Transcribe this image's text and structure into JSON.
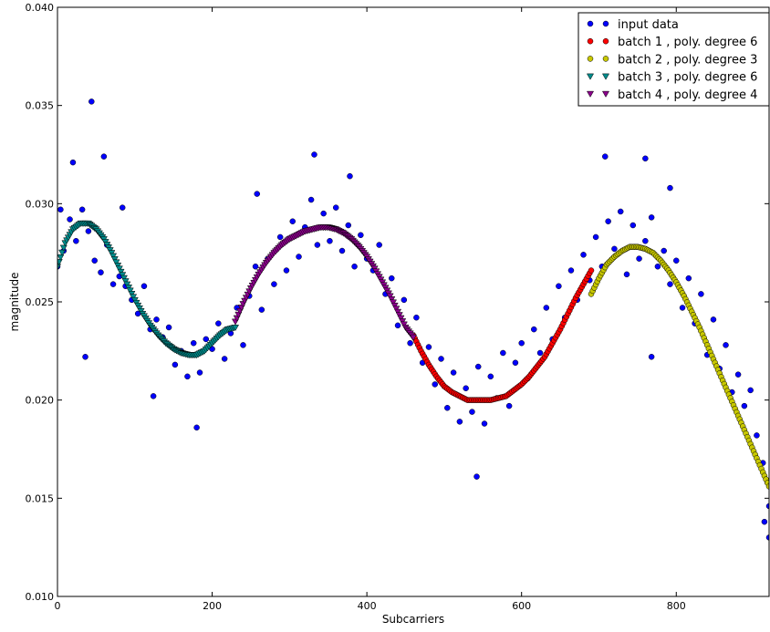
{
  "chart_data": {
    "type": "scatter",
    "xlabel": "Subcarriers",
    "ylabel": "magnitude",
    "xlim": [
      0,
      920
    ],
    "ylim": [
      0.01,
      0.04
    ],
    "x_ticks": [
      0,
      200,
      400,
      600,
      800
    ],
    "y_ticks": [
      0.01,
      0.015,
      0.02,
      0.025,
      0.03,
      0.035,
      0.04
    ],
    "x_tick_labels": [
      "0",
      "200",
      "400",
      "600",
      "800"
    ],
    "y_tick_labels": [
      "0.010",
      "0.015",
      "0.020",
      "0.025",
      "0.030",
      "0.035",
      "0.040"
    ],
    "grid": false,
    "legend_position": "top-right",
    "series": [
      {
        "name": "input data",
        "marker": "circle",
        "color": "#0000ff",
        "x": [
          0,
          8,
          16,
          24,
          32,
          40,
          48,
          56,
          64,
          72,
          80,
          88,
          96,
          104,
          112,
          120,
          128,
          136,
          144,
          152,
          160,
          168,
          176,
          184,
          192,
          200,
          208,
          216,
          224,
          232,
          240,
          248,
          256,
          264,
          272,
          280,
          288,
          296,
          304,
          312,
          320,
          328,
          336,
          344,
          352,
          360,
          368,
          376,
          384,
          392,
          400,
          408,
          416,
          424,
          432,
          440,
          448,
          456,
          464,
          472,
          480,
          488,
          496,
          504,
          512,
          520,
          528,
          536,
          544,
          552,
          560,
          568,
          576,
          584,
          592,
          600,
          608,
          616,
          624,
          632,
          640,
          648,
          656,
          664,
          672,
          680,
          688,
          696,
          704,
          712,
          720,
          728,
          736,
          744,
          752,
          760,
          768,
          776,
          784,
          792,
          800,
          808,
          816,
          824,
          832,
          840,
          848,
          856,
          864,
          872,
          880,
          888,
          896,
          904,
          912,
          920,
          4,
          20,
          36,
          44,
          60,
          84,
          124,
          180,
          258,
          332,
          378,
          542,
          708,
          760,
          768,
          792,
          914,
          918,
          920
        ],
        "y": [
          0.0268,
          0.0276,
          0.0292,
          0.0281,
          0.0297,
          0.0286,
          0.0271,
          0.0265,
          0.0279,
          0.0259,
          0.0263,
          0.0258,
          0.0251,
          0.0244,
          0.0258,
          0.0236,
          0.0241,
          0.0232,
          0.0237,
          0.0218,
          0.0225,
          0.0212,
          0.0229,
          0.0214,
          0.0231,
          0.0226,
          0.0239,
          0.0221,
          0.0234,
          0.0247,
          0.0228,
          0.0253,
          0.0268,
          0.0246,
          0.0272,
          0.0259,
          0.0283,
          0.0266,
          0.0291,
          0.0273,
          0.0288,
          0.0302,
          0.0279,
          0.0295,
          0.0281,
          0.0298,
          0.0276,
          0.0289,
          0.0268,
          0.0284,
          0.0272,
          0.0266,
          0.0279,
          0.0254,
          0.0262,
          0.0238,
          0.0251,
          0.0229,
          0.0242,
          0.0219,
          0.0227,
          0.0208,
          0.0221,
          0.0196,
          0.0214,
          0.0189,
          0.0206,
          0.0194,
          0.0217,
          0.0188,
          0.0212,
          0.0201,
          0.0224,
          0.0197,
          0.0219,
          0.0229,
          0.0211,
          0.0236,
          0.0224,
          0.0247,
          0.0231,
          0.0258,
          0.0242,
          0.0266,
          0.0251,
          0.0274,
          0.0261,
          0.0283,
          0.0268,
          0.0291,
          0.0277,
          0.0296,
          0.0264,
          0.0289,
          0.0272,
          0.0281,
          0.0293,
          0.0268,
          0.0276,
          0.0259,
          0.0271,
          0.0247,
          0.0262,
          0.0239,
          0.0254,
          0.0223,
          0.0241,
          0.0216,
          0.0228,
          0.0204,
          0.0213,
          0.0197,
          0.0205,
          0.0182,
          0.0168,
          0.0146,
          0.0297,
          0.0321,
          0.0222,
          0.0352,
          0.0324,
          0.0298,
          0.0202,
          0.0186,
          0.0305,
          0.0325,
          0.0314,
          0.0161,
          0.0324,
          0.0323,
          0.0222,
          0.0308,
          0.0138,
          0.0158,
          0.013
        ]
      },
      {
        "name": "batch 1 , poly. degree 6",
        "marker": "circle",
        "color": "#ff0000",
        "x_range": [
          460,
          690
        ],
        "x": [
          460,
          470,
          480,
          490,
          500,
          510,
          520,
          530,
          540,
          550,
          560,
          570,
          580,
          590,
          600,
          610,
          620,
          630,
          640,
          650,
          660,
          670,
          680,
          690
        ],
        "y": [
          0.0233,
          0.0225,
          0.0218,
          0.0212,
          0.0207,
          0.0204,
          0.0202,
          0.02,
          0.02,
          0.02,
          0.02,
          0.0201,
          0.0202,
          0.0205,
          0.0208,
          0.0212,
          0.0217,
          0.0222,
          0.0229,
          0.0236,
          0.0244,
          0.0252,
          0.0259,
          0.0266
        ]
      },
      {
        "name": "batch 2 , poly. degree 3",
        "marker": "circle",
        "color": "#c8c800",
        "x_range": [
          690,
          920
        ],
        "x": [
          690,
          700,
          710,
          720,
          730,
          740,
          750,
          760,
          770,
          780,
          790,
          800,
          810,
          820,
          830,
          840,
          850,
          860,
          870,
          880,
          890,
          900,
          910,
          920
        ],
        "y": [
          0.0254,
          0.0262,
          0.0269,
          0.0273,
          0.0276,
          0.0278,
          0.0278,
          0.0277,
          0.0275,
          0.0271,
          0.0266,
          0.026,
          0.0253,
          0.0245,
          0.0237,
          0.0228,
          0.0219,
          0.021,
          0.0201,
          0.0192,
          0.0183,
          0.0174,
          0.0165,
          0.0156
        ]
      },
      {
        "name": "batch 3 , poly. degree 6",
        "marker": "triangle-down",
        "color": "#008b8b",
        "x_range": [
          0,
          230
        ],
        "x": [
          0,
          10,
          20,
          30,
          40,
          50,
          60,
          70,
          80,
          90,
          100,
          110,
          120,
          130,
          140,
          150,
          160,
          170,
          180,
          190,
          200,
          210,
          220,
          230
        ],
        "y": [
          0.0268,
          0.028,
          0.0287,
          0.029,
          0.029,
          0.0287,
          0.0282,
          0.0275,
          0.0267,
          0.0259,
          0.0251,
          0.0244,
          0.0238,
          0.0233,
          0.0229,
          0.0226,
          0.0224,
          0.0223,
          0.0223,
          0.0225,
          0.0229,
          0.0233,
          0.0236,
          0.0237
        ]
      },
      {
        "name": "batch 4 , poly. degree 4",
        "marker": "triangle-down",
        "color": "#8b008b",
        "x_range": [
          230,
          460
        ],
        "x": [
          230,
          240,
          250,
          260,
          270,
          280,
          290,
          300,
          310,
          320,
          330,
          340,
          350,
          360,
          370,
          380,
          390,
          400,
          410,
          420,
          430,
          440,
          450,
          460
        ],
        "y": [
          0.024,
          0.0249,
          0.0257,
          0.0264,
          0.027,
          0.0275,
          0.0279,
          0.0282,
          0.0284,
          0.0286,
          0.0287,
          0.0288,
          0.0288,
          0.0287,
          0.0285,
          0.0282,
          0.0278,
          0.0273,
          0.0267,
          0.026,
          0.0253,
          0.0245,
          0.0237,
          0.0232
        ]
      }
    ]
  }
}
